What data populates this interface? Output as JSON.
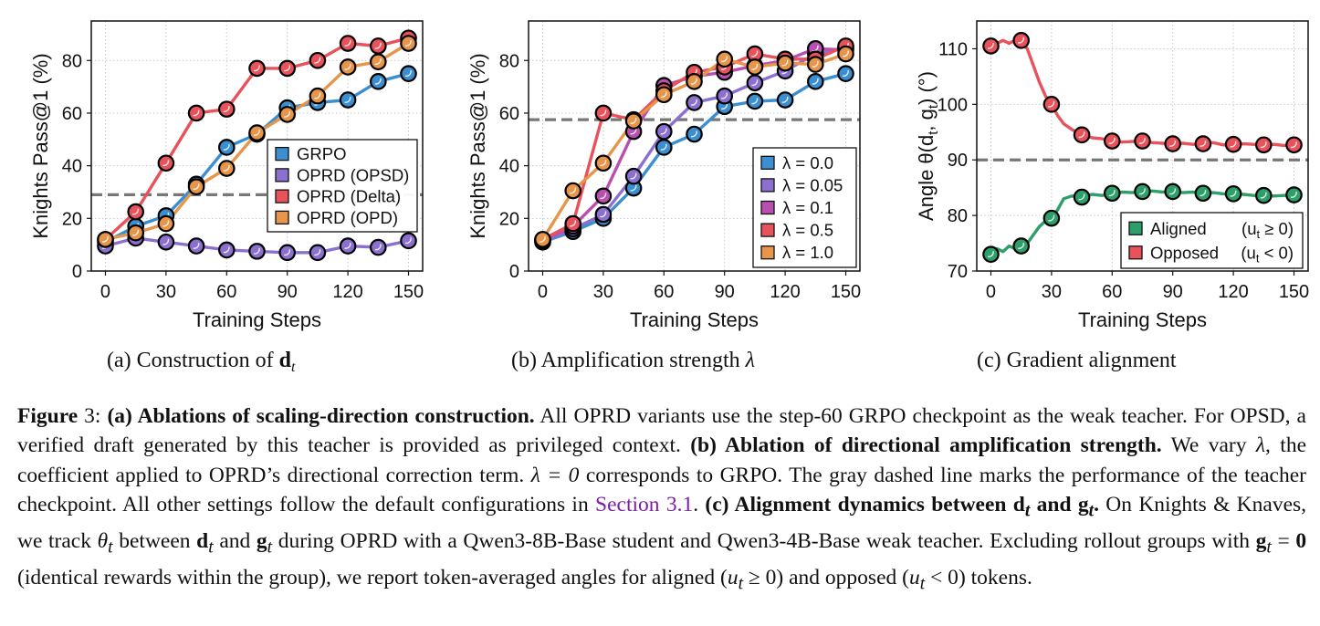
{
  "chart_data": [
    {
      "type": "line",
      "subcaption": "(a) Construction of",
      "subcaption_math": "d",
      "subcaption_sub": "t",
      "xlabel": "Training Steps",
      "ylabel": "Knights  Pass@1 (%)",
      "xlim": [
        -7,
        157
      ],
      "ylim": [
        0,
        95
      ],
      "xticks": [
        0,
        30,
        60,
        90,
        120,
        150
      ],
      "yticks": [
        0,
        20,
        40,
        60,
        80
      ],
      "grid": true,
      "legend_position": "center-right",
      "reference_line": {
        "y": 29,
        "style": "dashed",
        "color": "#777777"
      },
      "series": [
        {
          "name": "GRPO",
          "color": "#3b8fd0",
          "x": [
            0,
            15,
            30,
            45,
            60,
            75,
            90,
            105,
            120,
            135,
            150
          ],
          "y": [
            11,
            17,
            21,
            33,
            47,
            52,
            62,
            64,
            65,
            72,
            75
          ],
          "markers": [
            0,
            15,
            30,
            45,
            60,
            75,
            90,
            105,
            120,
            135,
            150
          ]
        },
        {
          "name": "OPRD (OPSD)",
          "color": "#8b70cf",
          "x": [
            0,
            15,
            30,
            45,
            60,
            75,
            90,
            105,
            120,
            135,
            150
          ],
          "y": [
            9.5,
            12.5,
            11,
            9.5,
            8,
            7.5,
            7,
            7,
            9.5,
            9,
            11.5
          ],
          "markers": [
            0,
            15,
            30,
            45,
            60,
            75,
            90,
            105,
            120,
            135,
            150
          ]
        },
        {
          "name": "OPRD (Delta)",
          "color": "#e8525b",
          "x": [
            0,
            15,
            30,
            45,
            60,
            75,
            90,
            105,
            120,
            135,
            150
          ],
          "y": [
            12,
            22.5,
            41,
            60,
            61.5,
            77,
            77,
            80,
            86.5,
            85.5,
            88.5
          ],
          "markers": [
            0,
            15,
            30,
            45,
            60,
            75,
            90,
            105,
            120,
            135,
            150
          ]
        },
        {
          "name": "OPRD (OPD)",
          "color": "#e6954a",
          "x": [
            0,
            15,
            30,
            45,
            60,
            75,
            90,
            105,
            120,
            135,
            150
          ],
          "y": [
            12,
            14.5,
            18,
            32,
            39,
            52.5,
            59.5,
            66.5,
            77.5,
            79.5,
            86.5
          ],
          "markers": [
            0,
            15,
            30,
            45,
            60,
            75,
            90,
            105,
            120,
            135,
            150
          ]
        }
      ]
    },
    {
      "type": "line",
      "subcaption": "(b) Amplification strength",
      "subcaption_math": "λ",
      "xlabel": "Training Steps",
      "ylabel": "Knights  Pass@1 (%)",
      "xlim": [
        -7,
        157
      ],
      "ylim": [
        0,
        95
      ],
      "xticks": [
        0,
        30,
        60,
        90,
        120,
        150
      ],
      "yticks": [
        0,
        20,
        40,
        60,
        80
      ],
      "grid": true,
      "legend_position": "lower-right",
      "reference_line": {
        "y": 57.5,
        "style": "dashed",
        "color": "#777777"
      },
      "series": [
        {
          "name": "λ = 0.0",
          "color": "#3b8fd0",
          "x": [
            0,
            15,
            30,
            45,
            60,
            75,
            90,
            105,
            120,
            135,
            150
          ],
          "y": [
            11,
            15,
            20,
            31.5,
            47,
            52,
            62.5,
            64.5,
            65,
            72,
            75
          ],
          "markers": [
            0,
            15,
            30,
            45,
            60,
            75,
            90,
            105,
            120,
            135,
            150
          ]
        },
        {
          "name": "λ = 0.05",
          "color": "#8b70cf",
          "x": [
            0,
            15,
            30,
            45,
            60,
            75,
            90,
            105,
            120,
            135,
            150
          ],
          "y": [
            11.5,
            16,
            21.5,
            36,
            53,
            64,
            66.5,
            71.5,
            76,
            82.5,
            85
          ],
          "markers": [
            0,
            15,
            30,
            45,
            60,
            75,
            90,
            105,
            120,
            135,
            150
          ]
        },
        {
          "name": "λ = 0.1",
          "color": "#b850b0",
          "x": [
            0,
            15,
            30,
            45,
            60,
            75,
            90,
            105,
            120,
            135,
            150
          ],
          "y": [
            11.5,
            17,
            28.5,
            53,
            70.5,
            74,
            75.5,
            78,
            80,
            84.5,
            84
          ],
          "markers": [
            0,
            15,
            30,
            45,
            60,
            75,
            90,
            105,
            120,
            135,
            150
          ]
        },
        {
          "name": "λ = 0.5",
          "color": "#e8525b",
          "x": [
            0,
            15,
            30,
            45,
            60,
            75,
            90,
            105,
            120,
            135,
            150
          ],
          "y": [
            12,
            18,
            60,
            57.5,
            68.5,
            75.5,
            77.5,
            82.5,
            80.5,
            80.5,
            85.5
          ],
          "markers": [
            0,
            15,
            30,
            45,
            60,
            75,
            90,
            105,
            120,
            135,
            150
          ]
        },
        {
          "name": "λ = 1.0",
          "color": "#e6954a",
          "x": [
            0,
            15,
            30,
            45,
            60,
            75,
            90,
            105,
            120,
            135,
            150
          ],
          "y": [
            12,
            30.5,
            41,
            57,
            67,
            72,
            80.5,
            77.5,
            79,
            78.5,
            82.5
          ],
          "markers": [
            0,
            15,
            30,
            45,
            60,
            75,
            90,
            105,
            120,
            135,
            150
          ]
        }
      ]
    },
    {
      "type": "line",
      "subcaption": "(c) Gradient alignment",
      "xlabel": "Training Steps",
      "ylabel": "Angle θ(d_t, g_t) (°)",
      "xlim": [
        -7,
        157
      ],
      "ylim": [
        70,
        115
      ],
      "xticks": [
        0,
        30,
        60,
        90,
        120,
        150
      ],
      "yticks": [
        70,
        80,
        90,
        100,
        110
      ],
      "grid": true,
      "legend_position": "lower-right",
      "reference_line": {
        "y": 90,
        "style": "dashed",
        "color": "#777777"
      },
      "series": [
        {
          "name": "Aligned",
          "legend_condition": "u_t ≥ 0",
          "color": "#2e9e6a",
          "x": [
            0,
            3,
            6,
            9,
            12,
            15,
            18,
            21,
            24,
            27,
            30,
            33,
            36,
            40,
            45,
            50,
            55,
            60,
            65,
            70,
            75,
            80,
            85,
            90,
            95,
            100,
            105,
            110,
            115,
            120,
            125,
            130,
            135,
            140,
            145,
            150
          ],
          "y": [
            73,
            74,
            73.5,
            74.5,
            74,
            74.5,
            75,
            76.5,
            78,
            79,
            79.5,
            81,
            83,
            83.5,
            83.3,
            83.8,
            83.6,
            84,
            84.2,
            84.1,
            84.3,
            84.4,
            84.2,
            84.3,
            84.1,
            84.2,
            84,
            84.1,
            83.9,
            83.9,
            83.8,
            83.6,
            83.6,
            83.5,
            83.6,
            83.7
          ],
          "markers": [
            0,
            15,
            30,
            45,
            60,
            75,
            90,
            105,
            120,
            135,
            150
          ]
        },
        {
          "name": "Opposed",
          "legend_condition": "u_t < 0",
          "color": "#e8525b",
          "x": [
            0,
            3,
            6,
            9,
            12,
            15,
            18,
            21,
            24,
            27,
            30,
            33,
            36,
            40,
            45,
            50,
            55,
            60,
            65,
            70,
            75,
            80,
            85,
            90,
            95,
            100,
            105,
            110,
            115,
            120,
            125,
            130,
            135,
            140,
            145,
            150
          ],
          "y": [
            110.5,
            111,
            111.5,
            111,
            111.5,
            111.5,
            110,
            107,
            104,
            101.5,
            100,
            98,
            96.5,
            95.5,
            94.5,
            94,
            93.8,
            93.4,
            93.2,
            93.3,
            93.4,
            93.1,
            93,
            92.9,
            93,
            92.8,
            92.9,
            93.1,
            92.7,
            92.8,
            92.9,
            92.8,
            92.7,
            92.8,
            92.6,
            92.7
          ],
          "markers": [
            0,
            15,
            30,
            45,
            60,
            75,
            90,
            105,
            120,
            135,
            150
          ]
        }
      ]
    }
  ],
  "caption": {
    "label": "Figure",
    "number": "3:",
    "a_head": "(a) Ablations of scaling-direction construction.",
    "a_body": "All OPRD variants use the step-60 GRPO checkpoint as the weak teacher. For OPSD, a verified draft generated by this teacher is provided as privileged context.",
    "b_head": "(b) Ablation of directional amplification strength.",
    "b_body_1": "We vary",
    "b_lambda": "λ",
    "b_body_2": ", the coefficient applied to OPRD’s directional correction term.",
    "b_eq": "λ = 0",
    "b_body_3": "corresponds to GRPO. The gray dashed line marks the performance of the teacher checkpoint. All other settings follow the default configurations in",
    "b_link": "Section 3.1",
    "b_body_4": ".",
    "c_head_1": "(c) Alignment dynamics between",
    "c_head_d": "d",
    "c_head_t1": "t",
    "c_head_2": "and",
    "c_head_g": "g",
    "c_head_t2": "t",
    "c_head_3": ".",
    "c_body_1": "On Knights & Knaves, we track",
    "c_theta": "θ",
    "c_theta_t": "t",
    "c_body_2": "between",
    "c_d": "d",
    "c_d_t": "t",
    "c_body_3": "and",
    "c_g": "g",
    "c_g_t": "t",
    "c_body_4": "during OPRD with a Qwen3-8B-Base student and Qwen3-4B-Base weak teacher. Excluding rollout groups with",
    "c_g2": "g",
    "c_g2_t": "t",
    "c_eq0": " = ",
    "c_zero": "0",
    "c_body_5": "(identical rewards within the group), we report token-averaged angles for aligned (",
    "c_u1": "u",
    "c_u1_t": "t",
    "c_ge": " ≥ 0",
    "c_body_6": ") and opposed (",
    "c_u2": "u",
    "c_u2_t": "t",
    "c_lt": " < 0",
    "c_body_7": ") tokens."
  }
}
